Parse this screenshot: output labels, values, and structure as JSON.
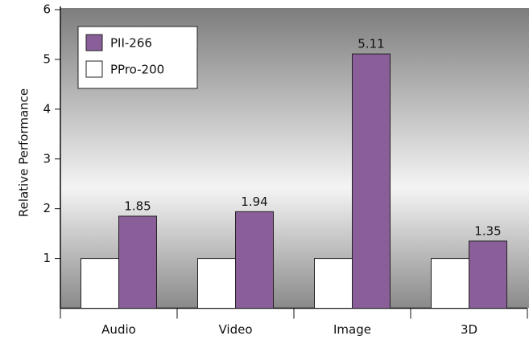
{
  "chart_data": {
    "type": "bar",
    "y_label": "Relative Performance",
    "categories": [
      "Audio",
      "Video",
      "Image",
      "3D"
    ],
    "series": [
      {
        "name": "PII-266",
        "color": "#8a5f99",
        "values": [
          1.85,
          1.94,
          5.11,
          1.35
        ],
        "show_values": true
      },
      {
        "name": "PPro-200",
        "color": "#ffffff",
        "values": [
          1,
          1,
          1,
          1
        ],
        "show_values": false
      }
    ],
    "ylim": [
      0,
      6
    ],
    "yticks": [
      1,
      2,
      3,
      4,
      5,
      6
    ],
    "legend": "upper left"
  }
}
